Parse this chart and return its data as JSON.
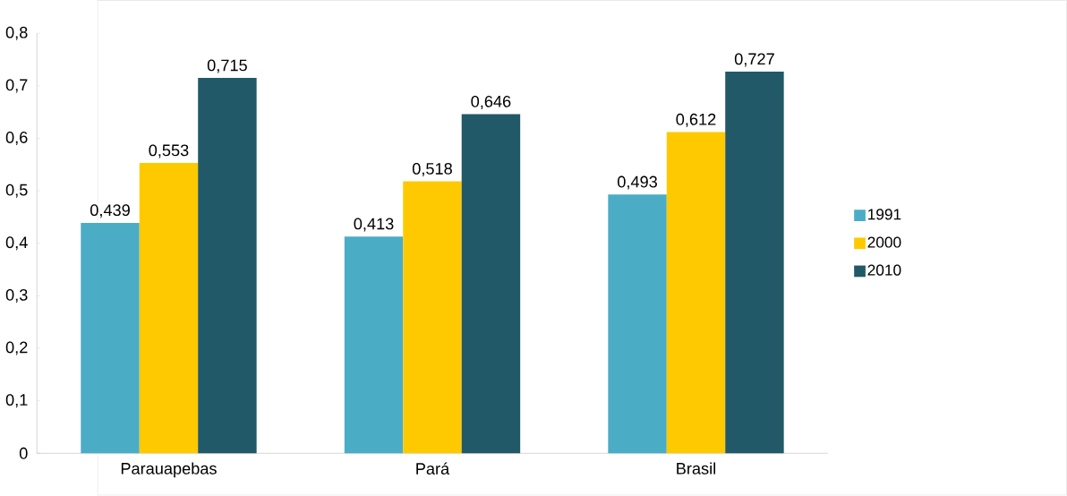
{
  "chart_data": {
    "type": "bar",
    "categories": [
      "Parauapebas",
      "Pará",
      "Brasil"
    ],
    "series": [
      {
        "name": "1991",
        "color": "#4bacc6",
        "values": [
          0.439,
          0.413,
          0.493
        ],
        "value_labels": [
          "0,439",
          "0,413",
          "0,493"
        ]
      },
      {
        "name": "2000",
        "color": "#ffc900",
        "values": [
          0.553,
          0.518,
          0.612
        ],
        "value_labels": [
          "0,553",
          "0,518",
          "0,612"
        ]
      },
      {
        "name": "2010",
        "color": "#215968",
        "values": [
          0.715,
          0.646,
          0.727
        ],
        "value_labels": [
          "0,715",
          "0,646",
          "0,727"
        ]
      }
    ],
    "ylim": [
      0,
      0.8
    ],
    "yticks": [
      {
        "value": 0,
        "label": "0"
      },
      {
        "value": 0.1,
        "label": "0,1"
      },
      {
        "value": 0.2,
        "label": "0,2"
      },
      {
        "value": 0.3,
        "label": "0,3"
      },
      {
        "value": 0.4,
        "label": "0,4"
      },
      {
        "value": 0.5,
        "label": "0,5"
      },
      {
        "value": 0.6,
        "label": "0,6"
      },
      {
        "value": 0.7,
        "label": "0,7"
      },
      {
        "value": 0.8,
        "label": "0,8"
      }
    ],
    "legend": "right"
  }
}
